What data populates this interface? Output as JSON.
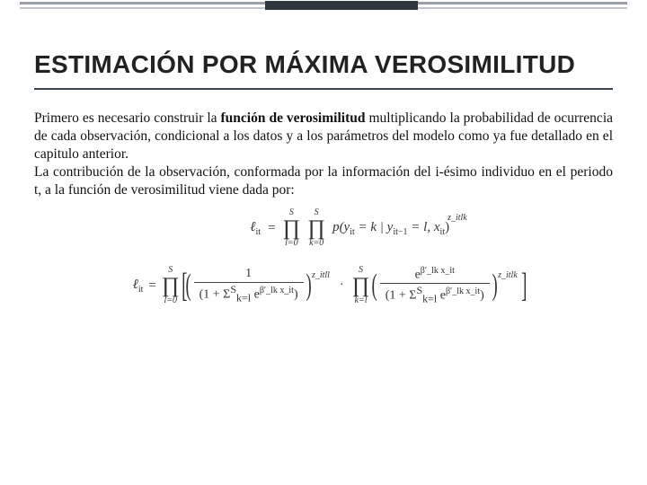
{
  "rule": {
    "line_color_1": "#9aa0a5",
    "line_color_2": "#c0c4c8",
    "overlay_color": "#2e3640"
  },
  "title": "ESTIMACIÓN POR MÁXIMA VEROSIMILITUD",
  "para1_a": "Primero es necesario construir la ",
  "para1_bold": "función de verosimilitud",
  "para1_b": " multiplicando la probabilidad de ocurrencia de cada observación, condicional a los datos y a los parámetros del modelo como ya fue detallado en el capitulo anterior.",
  "para2": "La contribución de la observación, conformada por la información del i-ésimo individuo en el periodo t, a la función de verosimilitud viene dada por:",
  "eq1": {
    "lhs": "ℓ",
    "lhs_sub": "it",
    "eq": "=",
    "prod1_top": "S",
    "prod1_bot": "l=0",
    "prod2_top": "S",
    "prod2_bot": "k=0",
    "p": "p(y",
    "p_sub": "it",
    "mid": " = k | y",
    "mid_sub": "it−1",
    "tail": " = l, x",
    "tail_sub": "it",
    "close": ")",
    "exp": "z_itlk"
  },
  "eq2": {
    "lhs": "ℓ",
    "lhs_sub": "it",
    "eq": "=",
    "prodA_top": "S",
    "prodA_bot": "l=0",
    "fracA_num": "1",
    "fracA_den_a": "(1 + Σ",
    "fracA_den_sum": "S",
    "fracA_den_idx": "k=l",
    "fracA_den_b": " e",
    "fracA_den_exp": "β′_lk x_it",
    "fracA_den_c": ")",
    "expA": "z_itll",
    "dot": "·",
    "prodB_top": "S",
    "prodB_bot": "k=l",
    "fracB_num_a": "e",
    "fracB_num_exp": "β′_lk x_it",
    "fracB_den_a": "(1 + Σ",
    "fracB_den_sum": "S",
    "fracB_den_idx": "k=l",
    "fracB_den_b": " e",
    "fracB_den_exp": "β′_lk x_it",
    "fracB_den_c": ")",
    "expB": "z_itlk"
  }
}
